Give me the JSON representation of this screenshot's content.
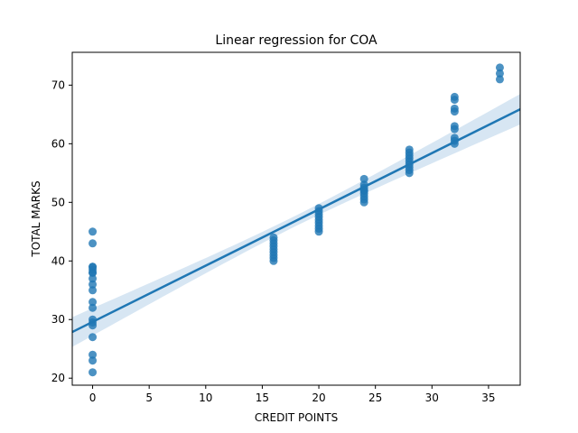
{
  "chart_data": {
    "type": "scatter",
    "title": "Linear regression for COA",
    "xlabel": "CREDIT POINTS",
    "ylabel": "TOTAL MARKS",
    "xlim": [
      -1.8,
      37.8
    ],
    "ylim": [
      18.8,
      75.6
    ],
    "xticks": [
      0,
      5,
      10,
      15,
      20,
      25,
      30,
      35
    ],
    "yticks": [
      20,
      30,
      40,
      50,
      60,
      70
    ],
    "grid": false,
    "legend": "none",
    "color": "#1f77b4",
    "series": [
      {
        "x": [
          0,
          0,
          0,
          0,
          0,
          0,
          0,
          0,
          0,
          0,
          0,
          0,
          0,
          0,
          0,
          0,
          0,
          0,
          0,
          16,
          16,
          16,
          16,
          16,
          16,
          16,
          16,
          16,
          20,
          20,
          20,
          20,
          20,
          20,
          20,
          20,
          20,
          24,
          24,
          24,
          24,
          24,
          24,
          24,
          24,
          24,
          28,
          28,
          28,
          28,
          28,
          28,
          28,
          28,
          28,
          32,
          32,
          32,
          32,
          32,
          32,
          32,
          32,
          32,
          36,
          36,
          36
        ],
        "y": [
          45,
          43,
          39,
          38.5,
          38,
          37,
          36,
          35,
          33,
          32,
          30,
          29.5,
          29,
          27,
          24,
          23,
          21,
          39,
          38,
          44,
          43.5,
          43,
          42,
          41,
          40.5,
          40,
          41.5,
          42.5,
          49,
          48.5,
          48,
          47.5,
          47,
          46,
          45.5,
          45,
          46.5,
          54,
          53,
          52.5,
          52,
          51.5,
          51,
          50.5,
          50,
          52,
          59,
          58.5,
          58,
          57,
          56,
          55.5,
          55,
          57.5,
          56.5,
          68,
          67.5,
          66,
          65.5,
          63,
          62.5,
          61,
          60.5,
          60,
          73,
          72,
          71
        ]
      }
    ],
    "regression": {
      "slope": 0.96,
      "intercept": 29.6,
      "x_range": [
        -1.8,
        37.8
      ],
      "ci_halfwidth_at_mean": 0.9,
      "ci_halfwidth_at_ends": 2.6,
      "line_color": "#1f77b4",
      "band_color": "#a6c8e5"
    }
  }
}
